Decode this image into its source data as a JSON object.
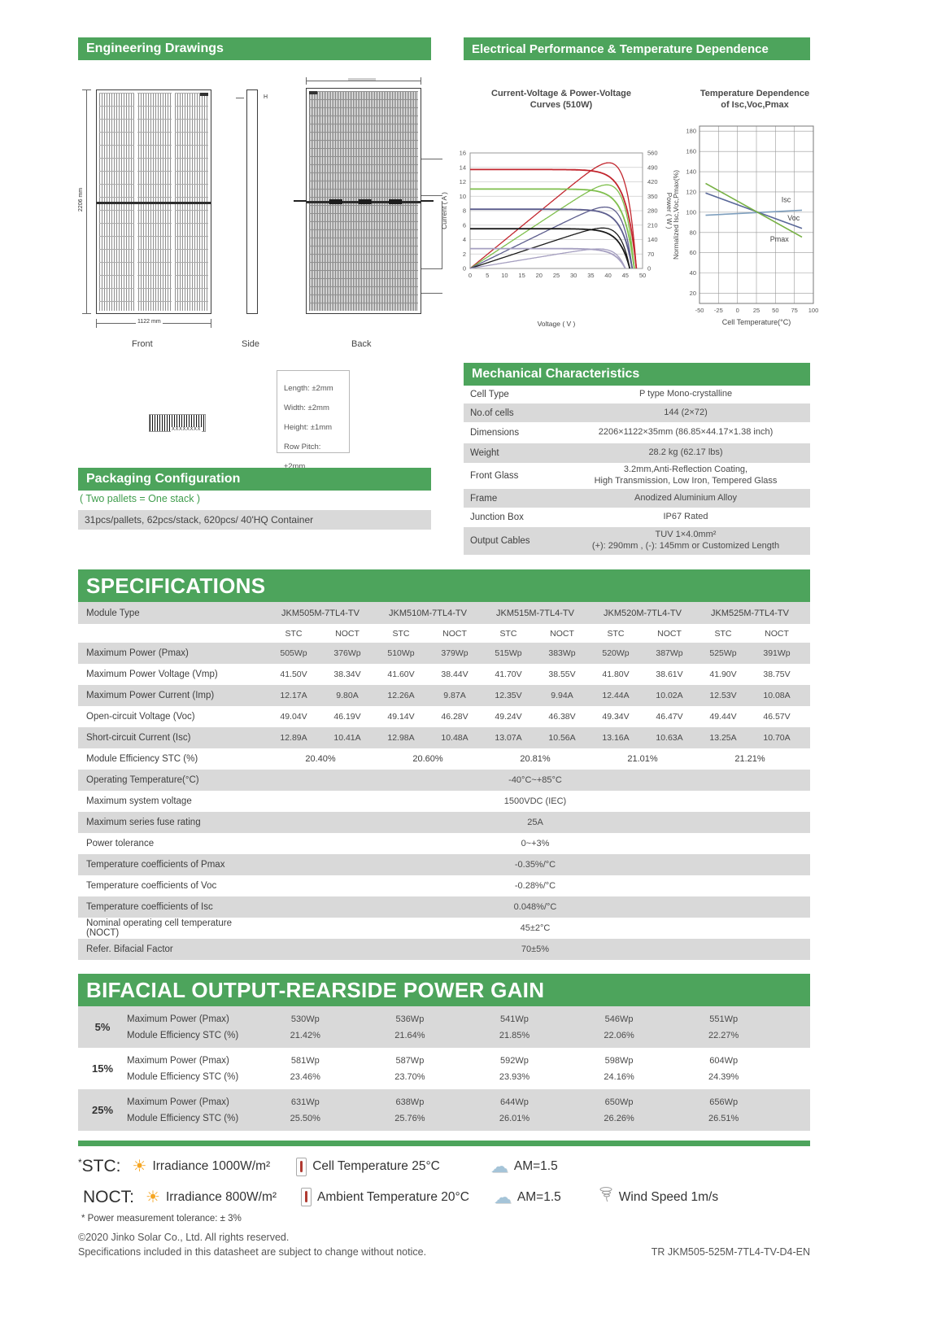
{
  "sections": {
    "engineering": {
      "title": "Engineering Drawings",
      "views": [
        "Front",
        "Side",
        "Back"
      ],
      "dims": {
        "height_label": "2206 mm",
        "width_label": "1122 mm",
        "side_label": "H"
      },
      "barcode_text": "XXXXXXXX",
      "tolerances": [
        "Length: ±2mm",
        "Width: ±2mm",
        "Height: ±1mm",
        "Row Pitch: ±2mm"
      ]
    },
    "packaging": {
      "title": "Packaging Configuration",
      "note": "( Two pallets = One stack )",
      "detail": "31pcs/pallets, 62pcs/stack, 620pcs/ 40'HQ Container"
    },
    "electrical": {
      "title": "Electrical Performance & Temperature Dependence"
    },
    "mechanical": {
      "title": "Mechanical Characteristics",
      "rows": [
        {
          "label": "Cell Type",
          "value": "P type Mono-crystalline",
          "shaded": false
        },
        {
          "label": "No.of cells",
          "value": "144 (2×72)",
          "shaded": true
        },
        {
          "label": "Dimensions",
          "value": "2206×1122×35mm (86.85×44.17×1.38 inch)",
          "shaded": false
        },
        {
          "label": "Weight",
          "value": "28.2 kg (62.17 lbs)",
          "shaded": true
        },
        {
          "label": "Front Glass",
          "value": "3.2mm,Anti-Reflection Coating,\nHigh Transmission, Low Iron, Tempered Glass",
          "shaded": false
        },
        {
          "label": "Frame",
          "value": "Anodized Aluminium Alloy",
          "shaded": true
        },
        {
          "label": "Junction Box",
          "value": "IP67 Rated",
          "shaded": false
        },
        {
          "label": "Output Cables",
          "value": "TUV  1×4.0mm²\n(+): 290mm , (-): 145mm or Customized Length",
          "shaded": true
        }
      ]
    },
    "specifications": {
      "title": "SPECIFICATIONS",
      "module_type_label": "Module Type",
      "modules": [
        "JKM505M-7TL4-TV",
        "JKM510M-7TL4-TV",
        "JKM515M-7TL4-TV",
        "JKM520M-7TL4-TV",
        "JKM525M-7TL4-TV"
      ],
      "condition_labels": [
        "STC",
        "NOCT"
      ],
      "paired_rows": [
        {
          "label": "Maximum Power (Pmax)",
          "shaded": true,
          "values": [
            "505Wp",
            "376Wp",
            "510Wp",
            "379Wp",
            "515Wp",
            "383Wp",
            "520Wp",
            "387Wp",
            "525Wp",
            "391Wp"
          ]
        },
        {
          "label": "Maximum Power Voltage (Vmp)",
          "shaded": false,
          "values": [
            "41.50V",
            "38.34V",
            "41.60V",
            "38.44V",
            "41.70V",
            "38.55V",
            "41.80V",
            "38.61V",
            "41.90V",
            "38.75V"
          ]
        },
        {
          "label": "Maximum Power Current (Imp)",
          "shaded": true,
          "values": [
            "12.17A",
            "9.80A",
            "12.26A",
            "9.87A",
            "12.35V",
            "9.94A",
            "12.44A",
            "10.02A",
            "12.53V",
            "10.08A"
          ]
        },
        {
          "label": "Open-circuit Voltage (Voc)",
          "shaded": false,
          "values": [
            "49.04V",
            "46.19V",
            "49.14V",
            "46.28V",
            "49.24V",
            "46.38V",
            "49.34V",
            "46.47V",
            "49.44V",
            "46.57V"
          ]
        },
        {
          "label": "Short-circuit Current (Isc)",
          "shaded": true,
          "values": [
            "12.89A",
            "10.41A",
            "12.98A",
            "10.48A",
            "13.07A",
            "10.56A",
            "13.16A",
            "10.63A",
            "13.25A",
            "10.70A"
          ]
        }
      ],
      "efficiency_row": {
        "label": "Module Efficiency STC (%)",
        "shaded": false,
        "values": [
          "20.40%",
          "20.60%",
          "20.81%",
          "21.01%",
          "21.21%"
        ]
      },
      "full_rows": [
        {
          "label": "Operating Temperature(°C)",
          "value": "-40°C~+85°C",
          "shaded": true
        },
        {
          "label": "Maximum system voltage",
          "value": "1500VDC (IEC)",
          "shaded": false
        },
        {
          "label": "Maximum series fuse rating",
          "value": "25A",
          "shaded": true
        },
        {
          "label": "Power tolerance",
          "value": "0~+3%",
          "shaded": false
        },
        {
          "label": "Temperature coefficients of Pmax",
          "value": "-0.35%/°C",
          "shaded": true
        },
        {
          "label": "Temperature coefficients of Voc",
          "value": "-0.28%/°C",
          "shaded": false
        },
        {
          "label": "Temperature coefficients of Isc",
          "value": "0.048%/°C",
          "shaded": true
        },
        {
          "label": "Nominal operating cell temperature  (NOCT)",
          "value": "45±2°C",
          "shaded": false
        },
        {
          "label": "Refer. Bifacial Factor",
          "value": "70±5%",
          "shaded": true
        }
      ]
    },
    "bifacial": {
      "title": "BIFACIAL OUTPUT-REARSIDE POWER GAIN",
      "row_labels": [
        "Maximum Power (Pmax)",
        "Module Efficiency STC (%)"
      ],
      "blocks": [
        {
          "gain": "5%",
          "shaded": true,
          "pmax": [
            "530Wp",
            "536Wp",
            "541Wp",
            "546Wp",
            "551Wp"
          ],
          "eff": [
            "21.42%",
            "21.64%",
            "21.85%",
            "22.06%",
            "22.27%"
          ]
        },
        {
          "gain": "15%",
          "shaded": false,
          "pmax": [
            "581Wp",
            "587Wp",
            "592Wp",
            "598Wp",
            "604Wp"
          ],
          "eff": [
            "23.46%",
            "23.70%",
            "23.93%",
            "24.16%",
            "24.39%"
          ]
        },
        {
          "gain": "25%",
          "shaded": true,
          "pmax": [
            "631Wp",
            "638Wp",
            "644Wp",
            "650Wp",
            "656Wp"
          ],
          "eff": [
            "25.50%",
            "25.76%",
            "26.01%",
            "26.26%",
            "26.51%"
          ]
        }
      ]
    },
    "footer": {
      "stc_star": "*",
      "stc_label": "STC:",
      "stc_items": [
        {
          "icon": "sun",
          "text": "Irradiance 1000W/m²"
        },
        {
          "icon": "thermometer",
          "text": "Cell Temperature 25°C"
        },
        {
          "icon": "cloud",
          "text": "AM=1.5"
        }
      ],
      "noct_label": "NOCT:",
      "noct_items": [
        {
          "icon": "sun",
          "text": "Irradiance 800W/m²"
        },
        {
          "icon": "thermometer",
          "text": "Ambient Temperature 20°C"
        },
        {
          "icon": "cloud",
          "text": "AM=1.5"
        },
        {
          "icon": "wind",
          "text": "Wind Speed 1m/s"
        }
      ],
      "tolerance_note": "* Power measurement tolerance: ± 3%",
      "copyright": "©2020 Jinko Solar Co., Ltd. All rights reserved.",
      "disclaimer": "Specifications included in this datasheet are subject to change without notice.",
      "doc_code": "TR JKM505-525M-7TL4-TV-D4-EN"
    }
  },
  "colors": {
    "accent_green": "#4da45c",
    "stripe_gray": "#d9d9d9"
  },
  "chart_data": [
    {
      "type": "line",
      "title": "Current-Voltage & Power-Voltage\nCurves (510W)",
      "xlabel": "Voltage ( V )",
      "ylabel": "Current ( A )",
      "y2label": "Power ( W )",
      "xlim": [
        0,
        50
      ],
      "ylim": [
        0,
        16
      ],
      "y2lim": [
        0,
        560
      ],
      "xtick_step": 5,
      "ytick_step": 2,
      "y2tick_step": 70,
      "grid": "horizontal",
      "legend": "none",
      "curves": [
        {
          "color": "#c2262e",
          "isc": 13.7,
          "voc": 48.2,
          "a": 3.0,
          "pmax_w": 510
        },
        {
          "color": "#7fbf4d",
          "isc": 11.0,
          "voc": 47.6,
          "a": 3.0,
          "pmax_w": 405
        },
        {
          "color": "#5c5d8d",
          "isc": 8.2,
          "voc": 47.0,
          "a": 3.0,
          "pmax_w": 300
        },
        {
          "color": "#1a1a1a",
          "isc": 5.5,
          "voc": 46.3,
          "a": 3.0,
          "pmax_w": 200
        },
        {
          "color": "#a59fc0",
          "isc": 2.75,
          "voc": 45.0,
          "a": 3.0,
          "pmax_w": 95
        }
      ]
    },
    {
      "type": "line",
      "title": "Temperature Dependence\nof Isc,Voc,Pmax",
      "xlabel": "Cell Temperature(°C)",
      "ylabel": "Normalized Isc,Voc,Pmax(%)",
      "xlim": [
        -50,
        100
      ],
      "ylim": [
        10,
        185
      ],
      "xticks": [
        -50,
        -25,
        0,
        25,
        50,
        75,
        100
      ],
      "yticks": [
        20,
        40,
        60,
        80,
        100,
        120,
        140,
        160,
        180
      ],
      "grid": "both",
      "legend": "inline-labels",
      "series": [
        {
          "name": "Isc",
          "color": "#7e9fbe",
          "points": [
            [
              -42,
              97
            ],
            [
              85,
              102
            ]
          ],
          "label_pos": [
            58,
            110
          ]
        },
        {
          "name": "Voc",
          "color": "#5a6899",
          "points": [
            [
              -42,
              119
            ],
            [
              85,
              84
            ]
          ],
          "label_pos": [
            66,
            92
          ]
        },
        {
          "name": "Pmax",
          "color": "#76b043",
          "points": [
            [
              -42,
              128.5
            ],
            [
              85,
              75.5
            ]
          ],
          "label_pos": [
            43,
            71
          ]
        }
      ]
    }
  ]
}
